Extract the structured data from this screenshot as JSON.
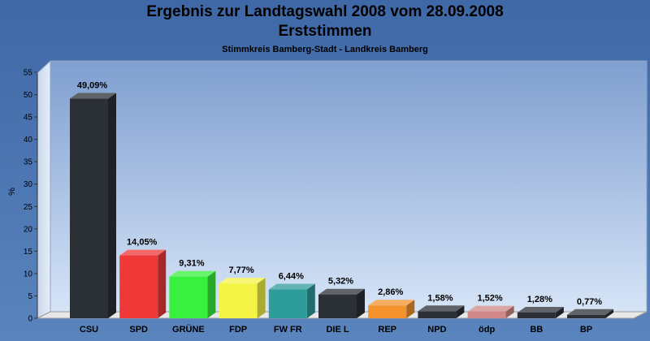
{
  "chart_data": {
    "type": "bar",
    "title": "Ergebnis zur Landtagswahl 2008 vom 28.09.2008",
    "title_line2": "Erststimmen",
    "subtitle": "Stimmkreis Bamberg-Stadt - Landkreis Bamberg",
    "xlabel": "",
    "ylabel": "%",
    "ylim": [
      0,
      55
    ],
    "yticks": [
      0,
      5,
      10,
      15,
      20,
      25,
      30,
      35,
      40,
      45,
      50,
      55
    ],
    "grid": false,
    "categories": [
      "CSU",
      "SPD",
      "GRÜNE",
      "FDP",
      "FW FR",
      "DIE L",
      "REP",
      "NPD",
      "ödp",
      "BB",
      "BP"
    ],
    "values": [
      49.09,
      14.05,
      9.31,
      7.77,
      6.44,
      5.32,
      2.86,
      1.58,
      1.52,
      1.28,
      0.77
    ],
    "data_labels": [
      "49,09%",
      "14,05%",
      "9,31%",
      "7,77%",
      "6,44%",
      "5,32%",
      "2,86%",
      "1,58%",
      "1,52%",
      "1,28%",
      "0,77%"
    ],
    "colors": [
      "#2b2f36",
      "#f03838",
      "#38f03e",
      "#f4f444",
      "#2f9c9c",
      "#2b2f36",
      "#f4922c",
      "#2b2f36",
      "#d08888",
      "#2b2f36",
      "#2b2f36"
    ]
  }
}
